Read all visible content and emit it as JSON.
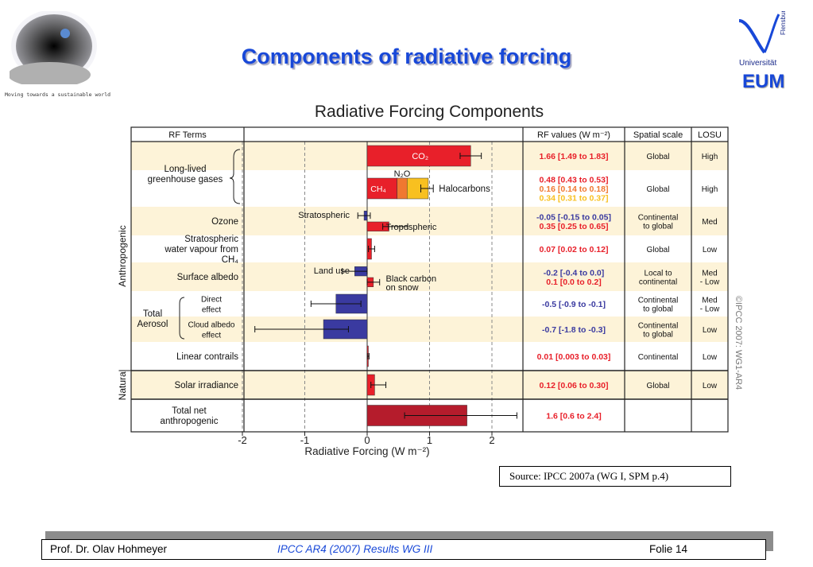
{
  "slide": {
    "title": "Components of radiative forcing",
    "tagline": "Moving towards a sustainable world",
    "uni_name": "Universität",
    "uni_city": "Flensburg",
    "eum": "EUM"
  },
  "source": "Source: IPCC 2007a (WG I, SPM p.4)",
  "footer": {
    "author": "Prof. Dr. Olav Hohmeyer",
    "center": "IPCC AR4 (2007) Results WG III",
    "page": "Folie 14"
  },
  "colors": {
    "positive": "#e8202a",
    "negative": "#3a3aa0",
    "total": "#b51c2c",
    "n2o": "#f07830",
    "halocarbons": "#f8c020",
    "highlight_row": "#fdf3d8",
    "title_blue": "#1848d8"
  },
  "chart_data": {
    "type": "bar",
    "orientation": "horizontal",
    "title": "Radiative Forcing Components",
    "xlabel": "Radiative Forcing (W m⁻²)",
    "xlim": [
      -2,
      2
    ],
    "xticks": [
      "-2",
      "-1",
      "0",
      "1",
      "2"
    ],
    "headers": [
      "RF Terms",
      "RF values (W m⁻²)",
      "Spatial scale",
      "LOSU"
    ],
    "group_labels": {
      "anthropogenic": "Anthropogenic",
      "natural": "Natural",
      "total_aerosol": "Total Aerosol",
      "long_lived": "Long-lived greenhouse gases"
    },
    "copyright": "©IPCC 2007: WG1-AR4",
    "rows": [
      {
        "term": "",
        "segments": [
          {
            "label": "CO₂",
            "value": 1.66,
            "low": 1.49,
            "high": 1.83,
            "color": "positive"
          }
        ],
        "rf": [
          {
            "text": "1.66 [1.49 to 1.83]",
            "color": "positive"
          }
        ],
        "scale": "Global",
        "losu": "High",
        "shaded": true
      },
      {
        "term": "",
        "stacked": true,
        "segments": [
          {
            "label": "CH₄",
            "value": 0.48,
            "low": 0.43,
            "high": 0.53,
            "color": "positive"
          },
          {
            "label": "N₂O",
            "value": 0.16,
            "low": 0.14,
            "high": 0.18,
            "color": "n2o"
          },
          {
            "label": "Halocarbons",
            "value": 0.34,
            "low": 0.31,
            "high": 0.37,
            "color": "halocarbons"
          }
        ],
        "rf": [
          {
            "text": "0.48 [0.43 to 0.53]",
            "color": "positive"
          },
          {
            "text": "0.16 [0.14 to 0.18]",
            "color": "n2o"
          },
          {
            "text": "0.34 [0.31 to 0.37]",
            "color": "halocarbons"
          }
        ],
        "scale": "Global",
        "losu": "High",
        "shaded": false
      },
      {
        "term": "Ozone",
        "segments": [
          {
            "label": "Stratospheric",
            "value": -0.05,
            "low": -0.15,
            "high": 0.05,
            "color": "negative"
          },
          {
            "label": "Tropospheric",
            "value": 0.35,
            "low": 0.25,
            "high": 0.65,
            "color": "positive"
          }
        ],
        "rf": [
          {
            "text": "-0.05 [-0.15 to 0.05]",
            "color": "negative"
          },
          {
            "text": "0.35 [0.25 to 0.65]",
            "color": "positive"
          }
        ],
        "scale": "Continental to global",
        "losu": "Med",
        "shaded": true
      },
      {
        "term": "Stratospheric water vapour from CH₄",
        "segments": [
          {
            "label": "",
            "value": 0.07,
            "low": 0.02,
            "high": 0.12,
            "color": "positive"
          }
        ],
        "rf": [
          {
            "text": "0.07 [0.02 to 0.12]",
            "color": "positive"
          }
        ],
        "scale": "Global",
        "losu": "Low",
        "shaded": false
      },
      {
        "term": "Surface albedo",
        "segments": [
          {
            "label": "Land use",
            "value": -0.2,
            "low": -0.4,
            "high": 0.0,
            "color": "negative"
          },
          {
            "label": "Black carbon on snow",
            "value": 0.1,
            "low": 0.0,
            "high": 0.2,
            "color": "positive"
          }
        ],
        "rf": [
          {
            "text": "-0.2 [-0.4 to 0.0]",
            "color": "negative"
          },
          {
            "text": "0.1 [0.0 to 0.2]",
            "color": "positive"
          }
        ],
        "scale": "Local to continental",
        "losu": "Med - Low",
        "shaded": true
      },
      {
        "term": "Direct effect",
        "segments": [
          {
            "label": "",
            "value": -0.5,
            "low": -0.9,
            "high": -0.1,
            "color": "negative"
          }
        ],
        "rf": [
          {
            "text": "-0.5 [-0.9 to -0.1]",
            "color": "negative"
          }
        ],
        "scale": "Continental to global",
        "losu": "Med - Low",
        "shaded": false
      },
      {
        "term": "Cloud albedo effect",
        "segments": [
          {
            "label": "",
            "value": -0.7,
            "low": -1.8,
            "high": -0.3,
            "color": "negative"
          }
        ],
        "rf": [
          {
            "text": "-0.7 [-1.8 to -0.3]",
            "color": "negative"
          }
        ],
        "scale": "Continental to global",
        "losu": "Low",
        "shaded": true
      },
      {
        "term": "Linear contrails",
        "segments": [
          {
            "label": "",
            "value": 0.01,
            "low": 0.003,
            "high": 0.03,
            "color": "positive"
          }
        ],
        "rf": [
          {
            "text": "0.01 [0.003 to 0.03]",
            "color": "positive"
          }
        ],
        "scale": "Continental",
        "losu": "Low",
        "shaded": false
      },
      {
        "term": "Solar irradiance",
        "segments": [
          {
            "label": "",
            "value": 0.12,
            "low": 0.06,
            "high": 0.3,
            "color": "positive"
          }
        ],
        "rf": [
          {
            "text": "0.12 [0.06 to 0.30]",
            "color": "positive"
          }
        ],
        "scale": "Global",
        "losu": "Low",
        "shaded": true
      },
      {
        "term": "Total net anthropogenic",
        "segments": [
          {
            "label": "",
            "value": 1.6,
            "low": 0.6,
            "high": 2.4,
            "color": "total"
          }
        ],
        "rf": [
          {
            "text": "1.6 [0.6 to 2.4]",
            "color": "positive"
          }
        ],
        "scale": "",
        "losu": "",
        "shaded": false
      }
    ]
  }
}
